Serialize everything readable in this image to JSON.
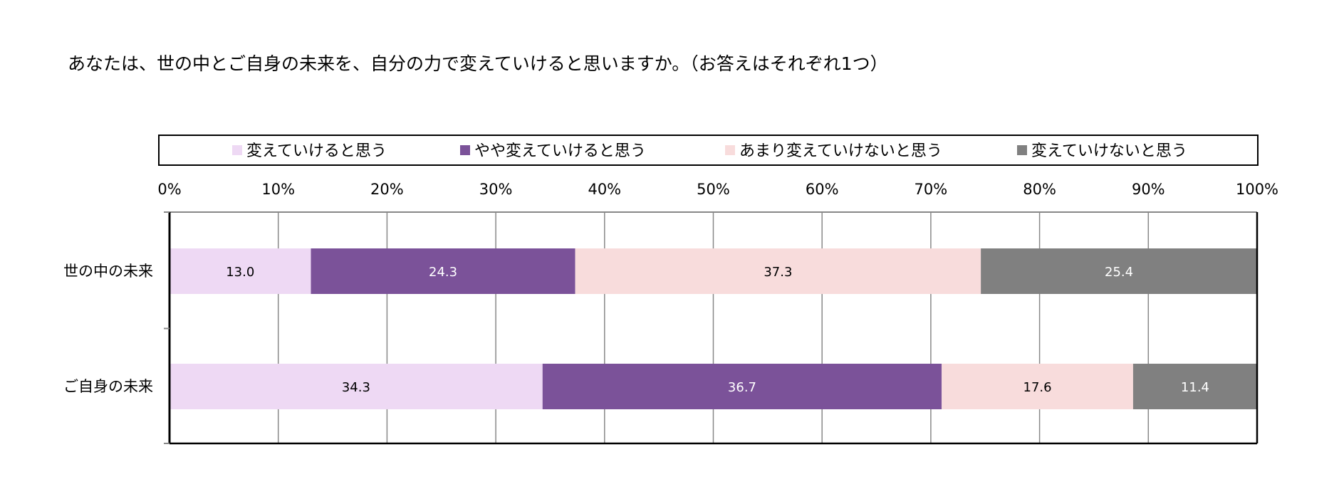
{
  "title": "あなたは、世の中とご自身の未来を、自分の力で変えていけると思いますか。（お答えはそれぞれ1つ）",
  "colors": {
    "series": [
      "#eed9f4",
      "#7b5299",
      "#f8dcdc",
      "#808080"
    ],
    "label_text": [
      "#000000",
      "#ffffff",
      "#000000",
      "#ffffff"
    ],
    "grid": "#888888",
    "frame": "#000000"
  },
  "chart_data": {
    "type": "bar",
    "orientation": "horizontal",
    "stacked": "percent",
    "title": "あなたは、世の中とご自身の未来を、自分の力で変えていけると思いますか。（お答えはそれぞれ1つ）",
    "categories": [
      "世の中の未来",
      "ご自身の未来"
    ],
    "series": [
      {
        "name": "変えていけると思う",
        "values": [
          13.0,
          34.3
        ]
      },
      {
        "name": "やや変えていけると思う",
        "values": [
          24.3,
          36.7
        ]
      },
      {
        "name": "あまり変えていけないと思う",
        "values": [
          37.3,
          17.6
        ]
      },
      {
        "name": "変えていけないと思う",
        "values": [
          25.4,
          11.4
        ]
      }
    ],
    "xlim": [
      0,
      100
    ],
    "xticks": [
      "0%",
      "10%",
      "20%",
      "30%",
      "40%",
      "50%",
      "60%",
      "70%",
      "80%",
      "90%",
      "100%"
    ],
    "grid": true,
    "legend_position": "top",
    "data_labels": true
  }
}
